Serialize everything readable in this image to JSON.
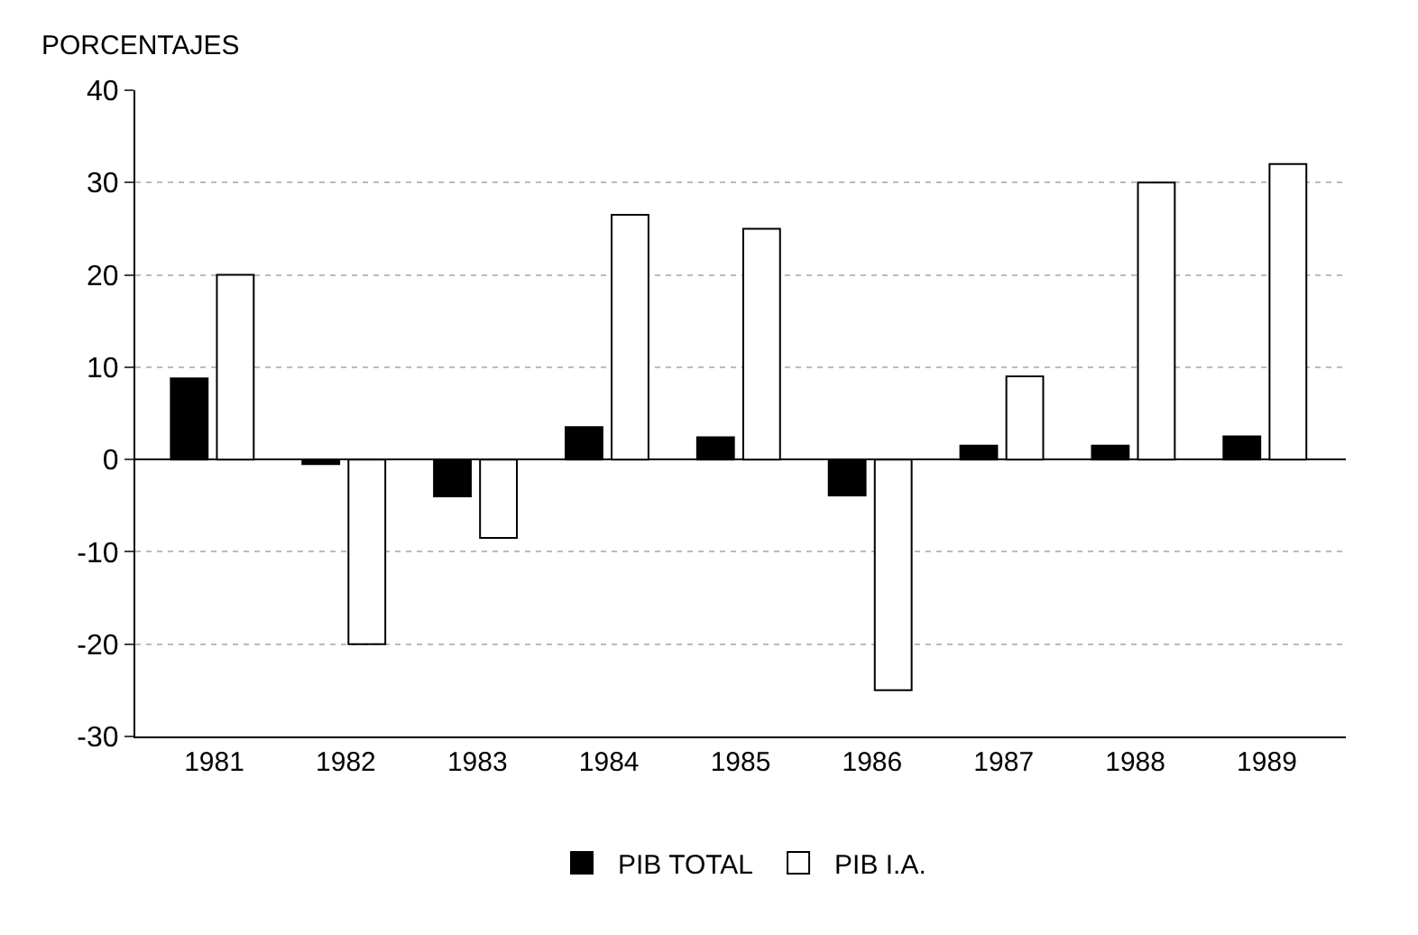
{
  "chart_data": {
    "type": "bar",
    "ylabel": "PORCENTAJES",
    "categories": [
      "1981",
      "1982",
      "1983",
      "1984",
      "1985",
      "1986",
      "1987",
      "1988",
      "1989"
    ],
    "series": [
      {
        "name": "PIB TOTAL",
        "color": "#000000",
        "values": [
          8.8,
          -0.5,
          -4,
          3.5,
          2.4,
          -3.9,
          1.5,
          1.5,
          2.5
        ]
      },
      {
        "name": "PIB I.A.",
        "color": "#ffffff",
        "values": [
          20,
          -20,
          -8.5,
          26.5,
          25,
          -25,
          9,
          30,
          32
        ]
      }
    ],
    "ylim": [
      -30,
      40
    ],
    "yticks": [
      -30,
      -20,
      -10,
      0,
      10,
      20,
      30,
      40
    ],
    "grid": "y",
    "legend": "bottom"
  }
}
